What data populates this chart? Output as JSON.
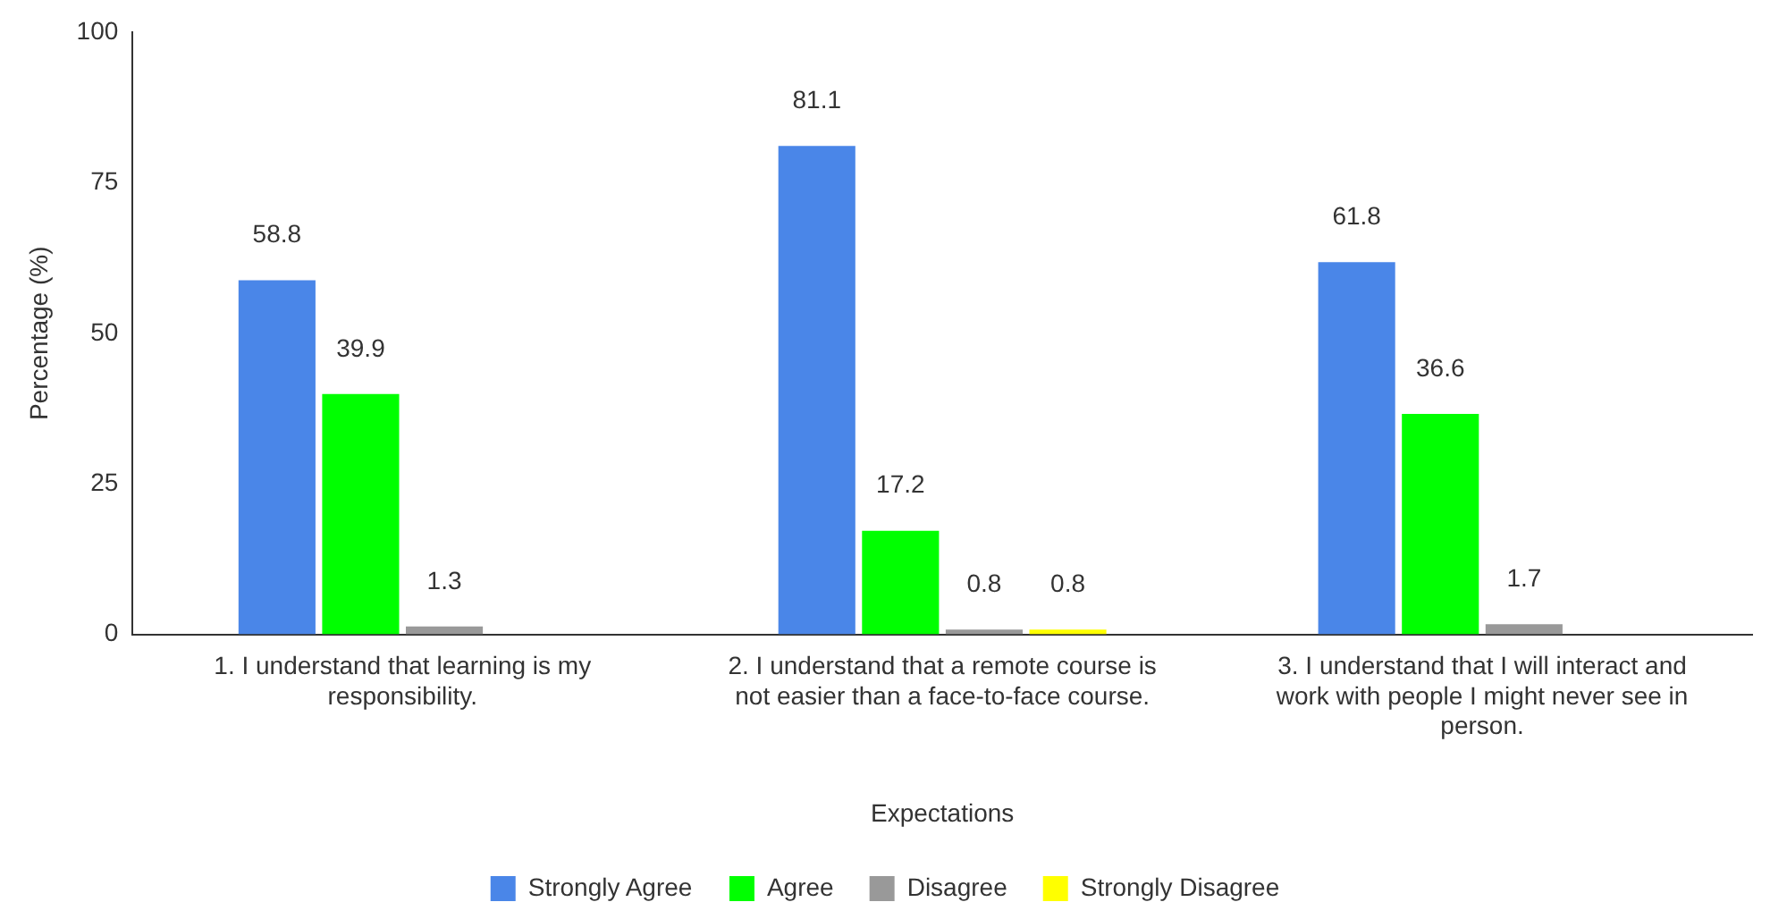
{
  "chart_data": {
    "type": "bar",
    "xlabel": "Expectations",
    "ylabel": "Percentage (%)",
    "categories": [
      "1. I understand that learning is my responsibility.",
      "2. I understand that a remote course is not easier than a face-to-face course.",
      "3. I understand that I will interact and work with people I might never see in person."
    ],
    "series": [
      {
        "name": "Strongly Agree",
        "color": "#4a86e8",
        "values": [
          58.8,
          81.1,
          61.8
        ],
        "value_labels": [
          "58.8",
          "81.1",
          "61.8"
        ]
      },
      {
        "name": "Agree",
        "color": "#00ff00",
        "values": [
          39.9,
          17.2,
          36.6
        ],
        "value_labels": [
          "39.9",
          "17.2",
          "36.6"
        ]
      },
      {
        "name": "Disagree",
        "color": "#999999",
        "values": [
          1.3,
          0.8,
          1.7
        ],
        "value_labels": [
          "1.3",
          "0.8",
          "1.7"
        ]
      },
      {
        "name": "Strongly Disagree",
        "color": "#ffff00",
        "values": [
          0,
          0.8,
          0
        ],
        "value_labels": [
          null,
          "0.8",
          null
        ]
      }
    ],
    "ylim": [
      0,
      100
    ],
    "yticks": [
      0,
      25,
      50,
      75,
      100
    ],
    "grid": false,
    "legend": "bottom"
  }
}
